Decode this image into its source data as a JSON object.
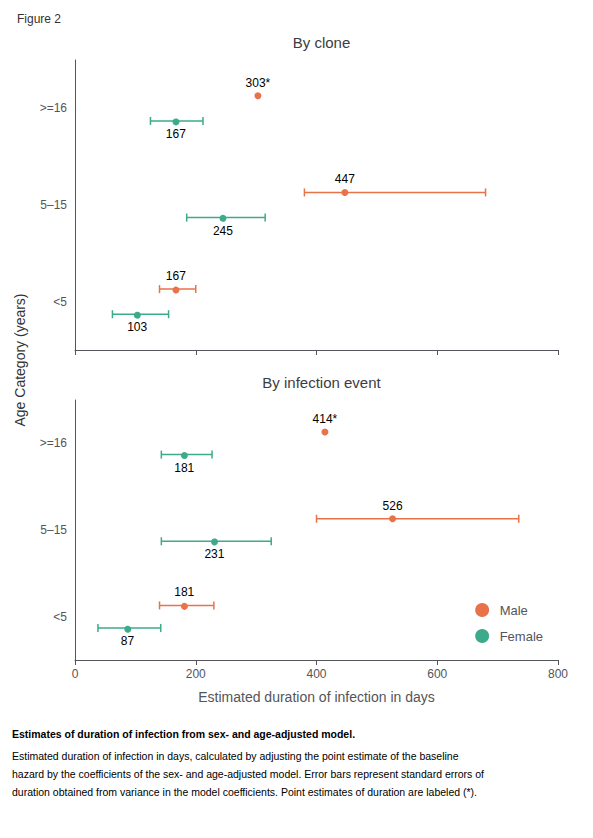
{
  "title": "Figure 2",
  "ylabel": "Age Category (years)",
  "annotations": [
    "Estimates of duration of infection from sex- and age-adjusted model.",
    "Estimated duration of infection in days, calculated by adjusting the point estimate of the baseline",
    "hazard by the coefficients of the sex- and age-adjusted model. Error bars represent standard errors of",
    "duration obtained from variance in the model coefficients. Point estimates of duration are labeled (*)."
  ],
  "chart_data": [
    {
      "type": "scatter",
      "title": "By clone",
      "orientation": "horizontal",
      "categories": [
        "<5",
        "5–15",
        ">=16"
      ],
      "xlim": [
        0,
        800
      ],
      "xticks": [
        0,
        200,
        400,
        600,
        800
      ],
      "tick_labels": "y",
      "data_labels": true,
      "series": [
        {
          "name": "Male",
          "color": "#E8724A",
          "values": [
            167,
            447,
            303
          ],
          "lo": [
            140,
            380,
            null
          ],
          "hi": [
            200,
            680,
            null
          ],
          "value_labels": [
            "167",
            "447",
            "303*"
          ]
        },
        {
          "name": "Female",
          "color": "#3DAA8B",
          "values": [
            103,
            245,
            167
          ],
          "lo": [
            62,
            185,
            125
          ],
          "hi": [
            155,
            315,
            212
          ]
        }
      ]
    },
    {
      "type": "scatter",
      "title": "By infection event",
      "orientation": "horizontal",
      "categories": [
        "<5",
        "5–15",
        ">=16"
      ],
      "xlabel": "Estimated duration of infection in days",
      "xlim": [
        0,
        800
      ],
      "xticks": [
        0,
        200,
        400,
        600,
        800
      ],
      "data_labels": true,
      "legend": "lower right",
      "series": [
        {
          "name": "Male",
          "color": "#E8724A",
          "values": [
            181,
            526,
            414
          ],
          "lo": [
            140,
            400,
            null
          ],
          "hi": [
            230,
            735,
            null
          ],
          "value_labels": [
            "181",
            "526",
            "414*"
          ]
        },
        {
          "name": "Female",
          "color": "#3DAA8B",
          "values": [
            87,
            231,
            181
          ],
          "lo": [
            38,
            143,
            143
          ],
          "hi": [
            142,
            325,
            227
          ]
        }
      ]
    }
  ]
}
